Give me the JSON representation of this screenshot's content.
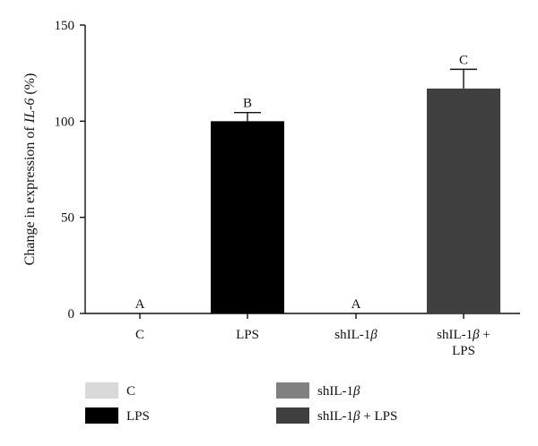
{
  "chart_data": {
    "type": "bar",
    "categories": [
      "C",
      "LPS",
      "shIL-1β",
      "shIL-1β + LPS"
    ],
    "category_label_lines": [
      [
        "C"
      ],
      [
        "LPS"
      ],
      [
        "shIL-1β"
      ],
      [
        "shIL-1β +",
        "LPS"
      ]
    ],
    "values": [
      0,
      100,
      0,
      117
    ],
    "errors": [
      0,
      4.5,
      0,
      10
    ],
    "significance_labels": [
      "A",
      "B",
      "A",
      "C"
    ],
    "colors": [
      "#d9d9d9",
      "#000000",
      "#808080",
      "#404040"
    ],
    "ylabel_parts": [
      "Change in expression of ",
      "IL-6",
      " (%)"
    ],
    "ylim": [
      0,
      150
    ],
    "yticks": [
      0,
      50,
      100,
      150
    ],
    "grid": false,
    "legend": {
      "placement": "bottom",
      "entries": [
        {
          "label": "C",
          "color": "#d9d9d9"
        },
        {
          "label": "shIL-1β",
          "color": "#808080"
        },
        {
          "label": "LPS",
          "color": "#000000"
        },
        {
          "label": "shIL-1β + LPS",
          "color": "#404040"
        }
      ]
    }
  }
}
